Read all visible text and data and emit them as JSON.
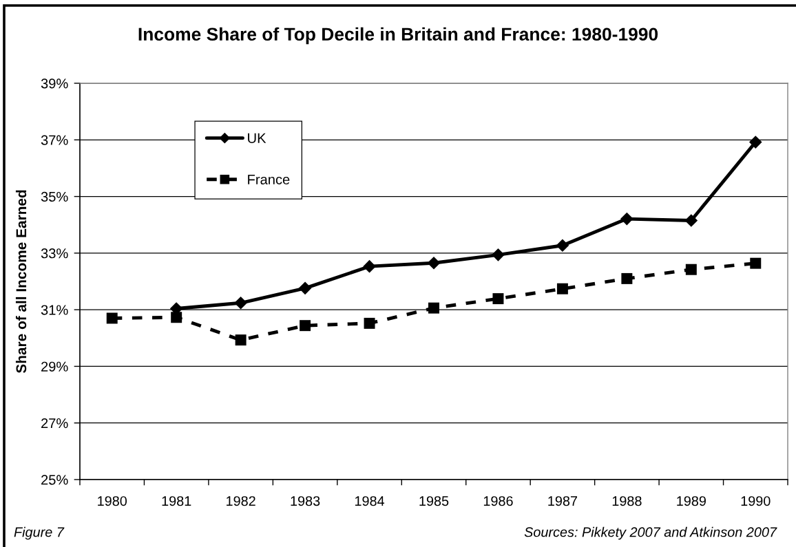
{
  "chart_data": {
    "type": "line",
    "title": "Income Share of Top Decile in Britain and France: 1980-1990",
    "ylabel": "Share of all Income Earned",
    "annotations": [
      "Figure 7",
      "Sources: Pikkety 2007 and Atkinson 2007"
    ],
    "categories": [
      "1980",
      "1981",
      "1982",
      "1983",
      "1984",
      "1985",
      "1986",
      "1987",
      "1988",
      "1989",
      "1990"
    ],
    "series": [
      {
        "name": "UK",
        "color": "#000000",
        "marker": "diamond",
        "line_style": "solid",
        "values": [
          null,
          31.04,
          31.24,
          31.76,
          32.53,
          32.65,
          32.94,
          33.27,
          34.21,
          34.15,
          36.92
        ]
      },
      {
        "name": "France",
        "color": "#000000",
        "marker": "square",
        "line_style": "dashed",
        "values": [
          30.7,
          30.73,
          29.93,
          30.44,
          30.52,
          31.06,
          31.39,
          31.74,
          32.1,
          32.42,
          32.64
        ]
      }
    ],
    "ylim": [
      25,
      39
    ],
    "yticks": [
      {
        "value": 25,
        "label": "25%"
      },
      {
        "value": 27,
        "label": "27%"
      },
      {
        "value": 29,
        "label": "29%"
      },
      {
        "value": 31,
        "label": "31%"
      },
      {
        "value": 33,
        "label": "33%"
      },
      {
        "value": 35,
        "label": "35%"
      },
      {
        "value": 37,
        "label": "37%"
      },
      {
        "value": 39,
        "label": "39%"
      }
    ],
    "grid": "y",
    "legend": "top left"
  }
}
